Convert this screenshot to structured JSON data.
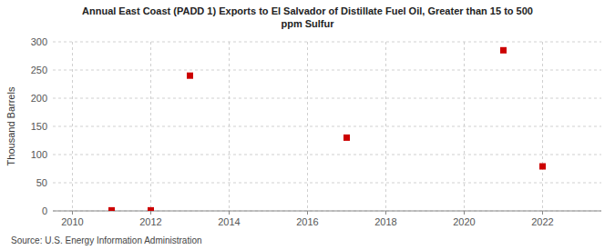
{
  "chart_data": {
    "type": "scatter",
    "title": "Annual East Coast (PADD 1) Exports to El Salvador of Distillate Fuel Oil, Greater than 15 to 500\nppm Sulfur",
    "y_label": "Thousand Barrels",
    "source": "Source: U.S. Energy Information Administration",
    "x": [
      2011,
      2012,
      2013,
      2017,
      2021,
      2022
    ],
    "values": [
      1,
      1,
      240,
      130,
      285,
      79
    ],
    "color": "#cc0000",
    "marker": "square",
    "xlim": [
      2009.5,
      2023.5
    ],
    "ylim": [
      0,
      300
    ],
    "xticks": [
      2010,
      2012,
      2014,
      2016,
      2018,
      2020,
      2022
    ],
    "yticks": [
      0,
      50,
      100,
      150,
      200,
      250,
      300
    ],
    "grid": true
  }
}
